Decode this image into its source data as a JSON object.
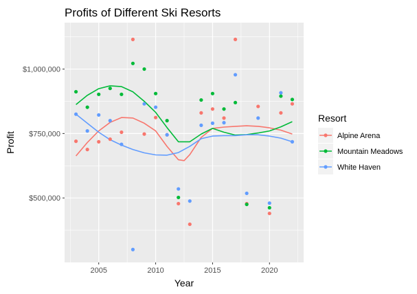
{
  "chart_data": {
    "type": "scatter",
    "title": "Profits of Different Ski Resorts",
    "xlabel": "Year",
    "ylabel": "Profit",
    "xlim": [
      2002,
      2023
    ],
    "ylim": [
      250000,
      1180000
    ],
    "x_ticks": [
      2005,
      2010,
      2015,
      2020
    ],
    "x_tick_labels": [
      "2005",
      "2010",
      "2015",
      "2020"
    ],
    "y_ticks": [
      500000,
      750000,
      1000000
    ],
    "y_tick_labels": [
      "$500,000",
      "$750,000",
      "$1,000,000"
    ],
    "grid": true,
    "background": "#ebebeb",
    "legend": {
      "title": "Resort",
      "placement": "right"
    },
    "series": [
      {
        "name": "Alpine Arena",
        "color": "#F8766D",
        "points": [
          [
            2003,
            720000
          ],
          [
            2004,
            688000
          ],
          [
            2005,
            718000
          ],
          [
            2006,
            728000
          ],
          [
            2007,
            755000
          ],
          [
            2008,
            1115000
          ],
          [
            2009,
            748000
          ],
          [
            2010,
            812000
          ],
          [
            2011,
            745000
          ],
          [
            2012,
            478000
          ],
          [
            2013,
            398000
          ],
          [
            2014,
            830000
          ],
          [
            2015,
            845000
          ],
          [
            2016,
            810000
          ],
          [
            2017,
            1115000
          ],
          [
            2018,
            478000
          ],
          [
            2019,
            855000
          ],
          [
            2020,
            440000
          ],
          [
            2021,
            830000
          ],
          [
            2022,
            865000
          ]
        ],
        "smooth": [
          [
            2003,
            663000
          ],
          [
            2004,
            715000
          ],
          [
            2005,
            760000
          ],
          [
            2006,
            793000
          ],
          [
            2007,
            812000
          ],
          [
            2008,
            810000
          ],
          [
            2009,
            790000
          ],
          [
            2010,
            760000
          ],
          [
            2011,
            700000
          ],
          [
            2012,
            648000
          ],
          [
            2012.5,
            645000
          ],
          [
            2013,
            668000
          ],
          [
            2014,
            735000
          ],
          [
            2015,
            770000
          ],
          [
            2016,
            775000
          ],
          [
            2017,
            778000
          ],
          [
            2018,
            780000
          ],
          [
            2019,
            778000
          ],
          [
            2020,
            772000
          ],
          [
            2021,
            763000
          ],
          [
            2022,
            748000
          ]
        ]
      },
      {
        "name": "Mountain Meadows",
        "color": "#00BA38",
        "points": [
          [
            2003,
            912000
          ],
          [
            2004,
            852000
          ],
          [
            2005,
            902000
          ],
          [
            2006,
            925000
          ],
          [
            2007,
            902000
          ],
          [
            2008,
            1022000
          ],
          [
            2009,
            1000000
          ],
          [
            2010,
            905000
          ],
          [
            2011,
            800000
          ],
          [
            2012,
            502000
          ],
          [
            2014,
            880000
          ],
          [
            2015,
            905000
          ],
          [
            2016,
            845000
          ],
          [
            2017,
            870000
          ],
          [
            2018,
            475000
          ],
          [
            2020,
            462000
          ],
          [
            2021,
            895000
          ],
          [
            2022,
            882000
          ]
        ],
        "smooth": [
          [
            2003,
            862000
          ],
          [
            2004,
            898000
          ],
          [
            2005,
            924000
          ],
          [
            2006,
            935000
          ],
          [
            2007,
            932000
          ],
          [
            2008,
            912000
          ],
          [
            2009,
            875000
          ],
          [
            2010,
            832000
          ],
          [
            2011,
            773000
          ],
          [
            2012,
            718000
          ],
          [
            2013,
            718000
          ],
          [
            2014,
            748000
          ],
          [
            2015,
            770000
          ],
          [
            2016,
            755000
          ],
          [
            2017,
            744000
          ],
          [
            2018,
            746000
          ],
          [
            2019,
            752000
          ],
          [
            2020,
            760000
          ],
          [
            2021,
            776000
          ],
          [
            2022,
            796000
          ]
        ]
      },
      {
        "name": "White Haven",
        "color": "#619CFF",
        "points": [
          [
            2003,
            825000
          ],
          [
            2004,
            760000
          ],
          [
            2005,
            822000
          ],
          [
            2006,
            800000
          ],
          [
            2007,
            708000
          ],
          [
            2008,
            300000
          ],
          [
            2009,
            865000
          ],
          [
            2010,
            852000
          ],
          [
            2011,
            745000
          ],
          [
            2012,
            535000
          ],
          [
            2013,
            488000
          ],
          [
            2014,
            782000
          ],
          [
            2015,
            790000
          ],
          [
            2016,
            792000
          ],
          [
            2017,
            978000
          ],
          [
            2018,
            518000
          ],
          [
            2019,
            810000
          ],
          [
            2020,
            480000
          ],
          [
            2021,
            908000
          ],
          [
            2022,
            718000
          ]
        ],
        "smooth": [
          [
            2003,
            825000
          ],
          [
            2004,
            790000
          ],
          [
            2005,
            755000
          ],
          [
            2006,
            726000
          ],
          [
            2007,
            705000
          ],
          [
            2008,
            688000
          ],
          [
            2009,
            675000
          ],
          [
            2010,
            667000
          ],
          [
            2011,
            666000
          ],
          [
            2012,
            676000
          ],
          [
            2013,
            700000
          ],
          [
            2014,
            730000
          ],
          [
            2015,
            740000
          ],
          [
            2016,
            742000
          ],
          [
            2017,
            742000
          ],
          [
            2018,
            745000
          ],
          [
            2019,
            745000
          ],
          [
            2020,
            740000
          ],
          [
            2021,
            732000
          ],
          [
            2022,
            718000
          ]
        ]
      }
    ]
  }
}
